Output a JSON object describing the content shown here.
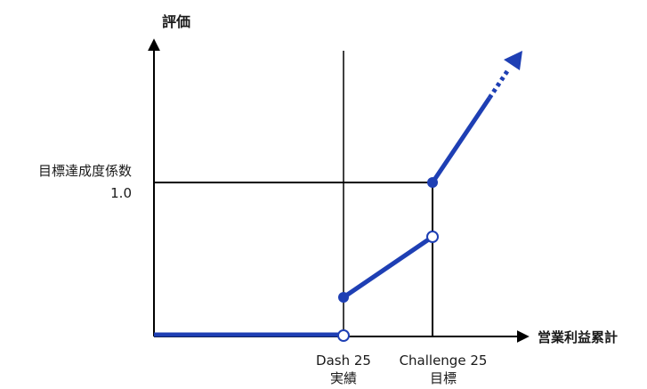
{
  "y_axis_label": "評価",
  "x_axis_label": "営業利益累計",
  "reference_line": {
    "label_line1": "目標達成度係数",
    "label_line2": "1.0"
  },
  "x_markers": [
    {
      "line1": "Dash 25",
      "line2": "実績"
    },
    {
      "line1": "Challenge 25",
      "line2": "目標"
    }
  ],
  "colors": {
    "series": "#1e3fb4",
    "axis": "#000000"
  }
}
